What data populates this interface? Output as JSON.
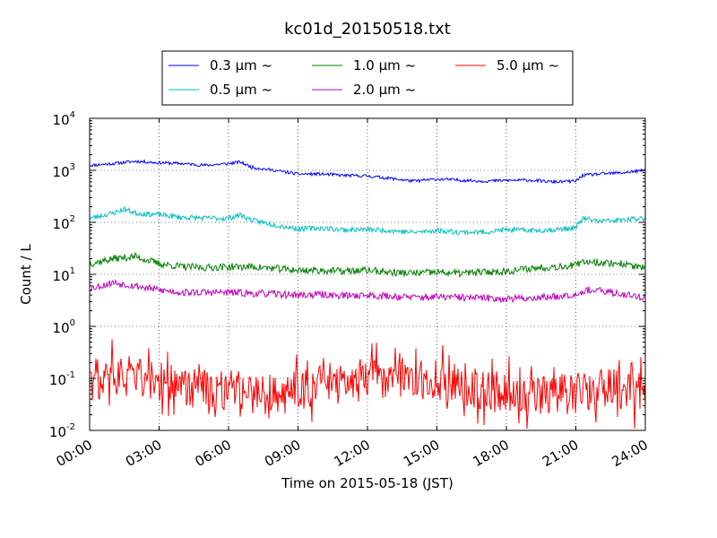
{
  "chart_data": {
    "type": "line",
    "title": "kc01d_20150518.txt",
    "xlabel": "Time on 2015-05-18 (JST)",
    "ylabel": "Count / L",
    "x_ticks": [
      "00:00",
      "03:00",
      "06:00",
      "09:00",
      "12:00",
      "15:00",
      "18:00",
      "21:00",
      "24:00"
    ],
    "x_range_hours": [
      0,
      24
    ],
    "y_scale": "log",
    "y_ticks": [
      {
        "base": "10",
        "exp": "-2",
        "value": 0.01
      },
      {
        "base": "10",
        "exp": "-1",
        "value": 0.1
      },
      {
        "base": "10",
        "exp": "0",
        "value": 1
      },
      {
        "base": "10",
        "exp": "1",
        "value": 10
      },
      {
        "base": "10",
        "exp": "2",
        "value": 100
      },
      {
        "base": "10",
        "exp": "3",
        "value": 1000
      },
      {
        "base": "10",
        "exp": "4",
        "value": 10000
      }
    ],
    "ylim": [
      0.01,
      10000
    ],
    "grid": true,
    "legend_position": "top-center",
    "series": [
      {
        "name": "0.3 μm ~",
        "color": "#0000ff",
        "noise": 0.03,
        "seed": 11,
        "x": [
          0,
          1,
          2,
          3,
          4,
          5,
          6,
          6.5,
          7,
          8,
          9,
          10,
          11,
          12,
          13,
          14,
          15,
          16,
          17,
          18,
          19,
          20,
          21,
          21.3,
          22,
          23,
          24
        ],
        "values": [
          1250,
          1350,
          1500,
          1400,
          1350,
          1250,
          1350,
          1450,
          1150,
          1000,
          850,
          850,
          800,
          780,
          700,
          620,
          680,
          650,
          620,
          640,
          650,
          600,
          620,
          800,
          850,
          900,
          1000
        ]
      },
      {
        "name": "0.5 μm ~",
        "color": "#00bfbf",
        "noise": 0.05,
        "seed": 23,
        "x": [
          0,
          1,
          1.5,
          2,
          3,
          4,
          5,
          6,
          6.5,
          7,
          8,
          9,
          10,
          11,
          12,
          13,
          14,
          15,
          16,
          17,
          18,
          19,
          20,
          21,
          21.3,
          22,
          23,
          24
        ],
        "values": [
          120,
          150,
          180,
          150,
          140,
          125,
          120,
          120,
          140,
          110,
          90,
          75,
          78,
          72,
          73,
          70,
          64,
          70,
          65,
          65,
          72,
          70,
          72,
          78,
          120,
          105,
          110,
          120
        ]
      },
      {
        "name": "1.0 μm ~",
        "color": "#008000",
        "noise": 0.07,
        "seed": 37,
        "x": [
          0,
          1,
          2,
          3,
          4,
          5,
          6,
          7,
          8,
          9,
          10,
          11,
          12,
          13,
          14,
          15,
          16,
          17,
          18,
          19,
          20,
          21,
          21.5,
          22,
          23,
          24
        ],
        "values": [
          16,
          20,
          22,
          16,
          14,
          13.5,
          14,
          14,
          13,
          12,
          12,
          11.5,
          12,
          11,
          10.5,
          11,
          10.5,
          11,
          11.5,
          13,
          14,
          15,
          18,
          17,
          16,
          13
        ]
      },
      {
        "name": "2.0 μm ~",
        "color": "#bf00bf",
        "noise": 0.07,
        "seed": 53,
        "x": [
          0,
          0.5,
          1,
          2,
          3,
          4,
          5,
          6,
          7,
          8,
          9,
          10,
          11,
          12,
          13,
          14,
          15,
          16,
          17,
          18,
          19,
          20,
          21,
          21.5,
          22,
          23,
          24
        ],
        "values": [
          5.5,
          6,
          7,
          6,
          5,
          4.5,
          4.5,
          4.5,
          4.3,
          4.2,
          4.0,
          4.1,
          3.9,
          4.0,
          3.8,
          3.6,
          3.7,
          3.6,
          3.5,
          3.4,
          3.5,
          3.7,
          4.2,
          5.0,
          4.8,
          4.2,
          3.6
        ]
      },
      {
        "name": "5.0 μm ~",
        "color": "#ff0000",
        "noise": 0.5,
        "seed": 71,
        "x": [
          0,
          1,
          2,
          3,
          4,
          5,
          6,
          7,
          8,
          9,
          10,
          11,
          12,
          13,
          14,
          15,
          16,
          17,
          18,
          19,
          20,
          21,
          22,
          23,
          24
        ],
        "values": [
          0.09,
          0.12,
          0.11,
          0.09,
          0.07,
          0.06,
          0.06,
          0.05,
          0.05,
          0.06,
          0.08,
          0.1,
          0.12,
          0.09,
          0.08,
          0.1,
          0.07,
          0.06,
          0.06,
          0.05,
          0.05,
          0.05,
          0.06,
          0.06,
          0.05
        ]
      }
    ]
  }
}
